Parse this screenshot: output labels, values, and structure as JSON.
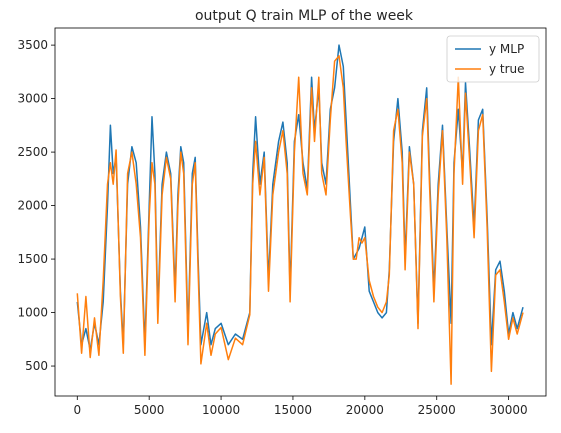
{
  "chart_data": {
    "type": "line",
    "title": "output Q train MLP of the week",
    "xlabel": "",
    "ylabel": "",
    "xlim": [
      -1550,
      32600
    ],
    "ylim": [
      220,
      3660
    ],
    "xticks": [
      0,
      5000,
      10000,
      15000,
      20000,
      25000,
      30000
    ],
    "yticks": [
      500,
      1000,
      1500,
      2000,
      2500,
      3000,
      3500
    ],
    "grid": false,
    "legend_position": "top-right",
    "series": [
      {
        "name": "y MLP",
        "color": "#1f77b4",
        "x": [
          0,
          300,
          600,
          900,
          1200,
          1500,
          1800,
          2100,
          2300,
          2500,
          2700,
          3000,
          3200,
          3500,
          3800,
          4100,
          4400,
          4700,
          5000,
          5200,
          5400,
          5600,
          5900,
          6200,
          6500,
          6800,
          7000,
          7200,
          7400,
          7700,
          8000,
          8200,
          8400,
          8600,
          9000,
          9300,
          9600,
          10000,
          10500,
          11000,
          11500,
          12000,
          12200,
          12400,
          12700,
          13000,
          13300,
          13600,
          14000,
          14300,
          14600,
          14800,
          15100,
          15400,
          15700,
          16000,
          16300,
          16500,
          16800,
          17000,
          17300,
          17600,
          17900,
          18200,
          18500,
          18700,
          19000,
          19200,
          19400,
          19600,
          19800,
          20000,
          20300,
          20600,
          20900,
          21200,
          21500,
          21700,
          22000,
          22300,
          22600,
          22800,
          23100,
          23400,
          23700,
          24000,
          24300,
          24500,
          24800,
          25100,
          25400,
          25700,
          26000,
          26200,
          26500,
          26800,
          27000,
          27300,
          27600,
          27900,
          28200,
          28500,
          28800,
          29100,
          29400,
          29700,
          30000,
          30300,
          30600,
          31000
        ],
        "y": [
          1100,
          700,
          850,
          650,
          900,
          700,
          1100,
          2000,
          2750,
          2300,
          2450,
          1200,
          700,
          2200,
          2550,
          2400,
          1800,
          700,
          2000,
          2830,
          2300,
          1000,
          2200,
          2500,
          2300,
          1200,
          2100,
          2550,
          2400,
          800,
          2300,
          2450,
          1500,
          700,
          1000,
          700,
          850,
          900,
          700,
          800,
          750,
          1000,
          2300,
          2830,
          2200,
          2500,
          1300,
          2200,
          2600,
          2780,
          2400,
          1200,
          2600,
          2850,
          2400,
          2150,
          3200,
          2700,
          3100,
          2400,
          2200,
          2900,
          3100,
          3500,
          3300,
          2800,
          2000,
          1500,
          1550,
          1600,
          1700,
          1800,
          1200,
          1100,
          1000,
          950,
          1000,
          1400,
          2600,
          3000,
          2500,
          1500,
          2550,
          2200,
          900,
          2700,
          3100,
          2300,
          1200,
          2200,
          2750,
          1800,
          900,
          2400,
          2900,
          2300,
          3150,
          2500,
          1800,
          2800,
          2900,
          1900,
          700,
          1400,
          1480,
          1200,
          800,
          1000,
          850,
          1050
        ]
      },
      {
        "name": "y true",
        "color": "#ff7f0e",
        "x": [
          0,
          300,
          600,
          900,
          1200,
          1500,
          1800,
          2100,
          2300,
          2500,
          2700,
          3000,
          3200,
          3500,
          3800,
          4100,
          4400,
          4700,
          5000,
          5200,
          5400,
          5600,
          5900,
          6200,
          6500,
          6800,
          7000,
          7200,
          7400,
          7700,
          8000,
          8200,
          8400,
          8600,
          9000,
          9300,
          9600,
          10000,
          10500,
          11000,
          11500,
          12000,
          12200,
          12400,
          12700,
          13000,
          13300,
          13600,
          14000,
          14300,
          14600,
          14800,
          15100,
          15400,
          15700,
          16000,
          16300,
          16500,
          16800,
          17000,
          17300,
          17600,
          17900,
          18200,
          18500,
          18700,
          19000,
          19200,
          19400,
          19600,
          19800,
          20000,
          20300,
          20600,
          20900,
          21200,
          21500,
          21700,
          22000,
          22300,
          22600,
          22800,
          23100,
          23400,
          23700,
          24000,
          24300,
          24500,
          24800,
          25100,
          25400,
          25700,
          26000,
          26200,
          26500,
          26800,
          27000,
          27300,
          27600,
          27900,
          28200,
          28500,
          28800,
          29100,
          29400,
          29700,
          30000,
          30300,
          30600,
          31000
        ],
        "y": [
          1180,
          620,
          1150,
          580,
          950,
          600,
          1300,
          2200,
          2400,
          2200,
          2520,
          1150,
          620,
          2300,
          2500,
          2200,
          1700,
          600,
          1900,
          2400,
          2200,
          900,
          2100,
          2450,
          2250,
          1100,
          2000,
          2500,
          2300,
          700,
          2200,
          2400,
          1400,
          520,
          900,
          600,
          800,
          860,
          560,
          760,
          700,
          980,
          2200,
          2600,
          2100,
          2450,
          1200,
          2100,
          2500,
          2700,
          2300,
          1100,
          2500,
          3200,
          2300,
          2100,
          3100,
          2600,
          3200,
          2300,
          2100,
          2800,
          3350,
          3400,
          3100,
          2600,
          1900,
          1500,
          1500,
          1700,
          1650,
          1700,
          1300,
          1150,
          1050,
          1000,
          1100,
          1350,
          2700,
          2900,
          2400,
          1400,
          2500,
          2200,
          850,
          2650,
          3000,
          2200,
          1100,
          2100,
          2700,
          1700,
          330,
          2300,
          3200,
          2200,
          3050,
          2400,
          1700,
          2700,
          2850,
          1800,
          450,
          1350,
          1400,
          1100,
          750,
          950,
          800,
          1000
        ]
      }
    ]
  }
}
